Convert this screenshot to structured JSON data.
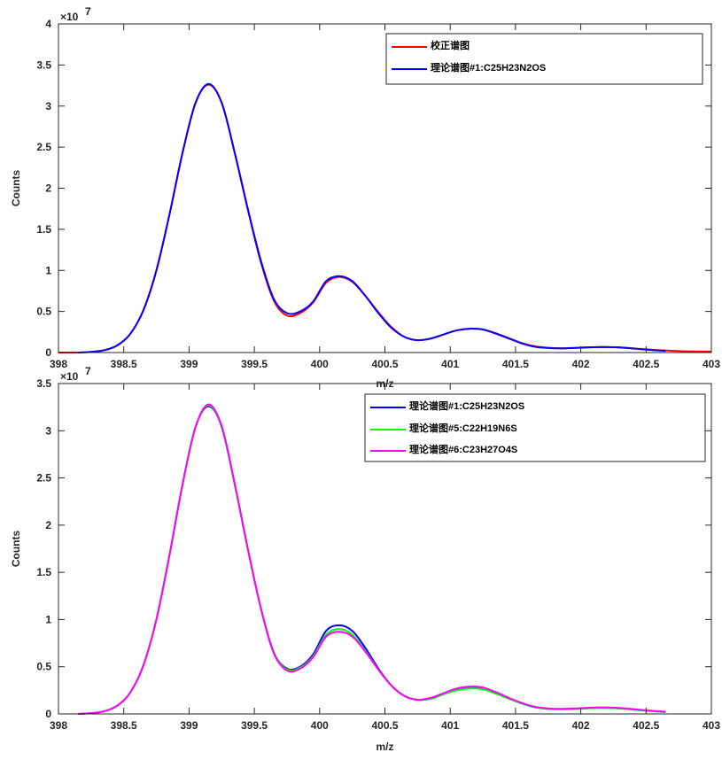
{
  "chart_data": [
    {
      "type": "line",
      "xlabel": "m/z",
      "ylabel": "Counts",
      "y_exponent": "×10",
      "y_exponent_power": "7",
      "xlim": [
        398,
        403
      ],
      "ylim": [
        0,
        4
      ],
      "xticks": [
        398,
        398.5,
        399,
        399.5,
        400,
        400.5,
        401,
        401.5,
        402,
        402.5,
        403
      ],
      "yticks": [
        0,
        0.5,
        1,
        1.5,
        2,
        2.5,
        3,
        3.5,
        4
      ],
      "y_units": "×10^7 counts",
      "grid": false,
      "legend_position": "top-right",
      "series": [
        {
          "name": "校正谱图",
          "color": "#ff0000",
          "x": [
            398.0,
            398.05,
            398.15,
            398.25,
            398.35,
            398.45,
            398.55,
            398.65,
            398.75,
            398.85,
            398.95,
            399.05,
            399.15,
            399.25,
            399.35,
            399.45,
            399.55,
            399.65,
            399.75,
            399.85,
            399.95,
            400.05,
            400.15,
            400.25,
            400.35,
            400.45,
            400.55,
            400.65,
            400.75,
            400.85,
            400.95,
            401.05,
            401.15,
            401.25,
            401.35,
            401.45,
            401.55,
            401.65,
            401.75,
            401.85,
            401.95,
            402.05,
            402.15,
            402.25,
            402.35,
            402.45,
            402.55,
            402.65,
            402.75,
            402.85,
            402.95,
            403.0
          ],
          "y": [
            0,
            0,
            0,
            0.008,
            0.028,
            0.087,
            0.227,
            0.513,
            1.0,
            1.68,
            2.43,
            3.04,
            3.26,
            3.04,
            2.43,
            1.74,
            1.1,
            0.63,
            0.45,
            0.48,
            0.61,
            0.85,
            0.92,
            0.86,
            0.69,
            0.49,
            0.31,
            0.19,
            0.15,
            0.17,
            0.22,
            0.27,
            0.29,
            0.28,
            0.235,
            0.175,
            0.115,
            0.075,
            0.058,
            0.052,
            0.057,
            0.064,
            0.068,
            0.066,
            0.058,
            0.045,
            0.034,
            0.025,
            0.018,
            0.014,
            0.012,
            0.012
          ]
        },
        {
          "name": "理论谱图#1:C25H23N2OS",
          "color": "#0000ff",
          "x": [
            398.15,
            398.25,
            398.35,
            398.45,
            398.55,
            398.65,
            398.75,
            398.85,
            398.95,
            399.05,
            399.15,
            399.25,
            399.35,
            399.45,
            399.55,
            399.65,
            399.75,
            399.85,
            399.95,
            400.05,
            400.15,
            400.25,
            400.35,
            400.45,
            400.55,
            400.65,
            400.75,
            400.85,
            400.95,
            401.05,
            401.15,
            401.25,
            401.35,
            401.45,
            401.55,
            401.65,
            401.75,
            401.85,
            401.95,
            402.05,
            402.15,
            402.25,
            402.35,
            402.45,
            402.55,
            402.65
          ],
          "y": [
            0,
            0.008,
            0.028,
            0.087,
            0.227,
            0.513,
            1.0,
            1.68,
            2.43,
            3.04,
            3.27,
            3.04,
            2.43,
            1.75,
            1.12,
            0.65,
            0.48,
            0.5,
            0.62,
            0.87,
            0.93,
            0.87,
            0.69,
            0.48,
            0.3,
            0.19,
            0.15,
            0.17,
            0.22,
            0.27,
            0.29,
            0.28,
            0.23,
            0.17,
            0.11,
            0.07,
            0.055,
            0.05,
            0.055,
            0.062,
            0.066,
            0.064,
            0.055,
            0.042,
            0.03,
            0.02
          ]
        }
      ]
    },
    {
      "type": "line",
      "xlabel": "m/z",
      "ylabel": "Counts",
      "y_exponent": "×10",
      "y_exponent_power": "7",
      "xlim": [
        398,
        403
      ],
      "ylim": [
        0,
        3.5
      ],
      "xticks": [
        398,
        398.5,
        399,
        399.5,
        400,
        400.5,
        401,
        401.5,
        402,
        402.5,
        403
      ],
      "yticks": [
        0,
        0.5,
        1,
        1.5,
        2,
        2.5,
        3,
        3.5
      ],
      "y_units": "×10^7 counts",
      "grid": false,
      "legend_position": "top-right",
      "series": [
        {
          "name": "理论谱图#1:C25H23N2OS",
          "color": "#0000ff",
          "x": [
            398.15,
            398.25,
            398.35,
            398.45,
            398.55,
            398.65,
            398.75,
            398.85,
            398.95,
            399.05,
            399.15,
            399.25,
            399.35,
            399.45,
            399.55,
            399.65,
            399.75,
            399.85,
            399.95,
            400.05,
            400.15,
            400.25,
            400.35,
            400.45,
            400.55,
            400.65,
            400.75,
            400.85,
            400.95,
            401.05,
            401.15,
            401.25,
            401.35,
            401.45,
            401.55,
            401.65,
            401.75,
            401.85,
            401.95,
            402.05,
            402.15,
            402.25,
            402.35,
            402.45,
            402.55,
            402.65
          ],
          "y": [
            0,
            0.008,
            0.028,
            0.087,
            0.227,
            0.513,
            1.0,
            1.68,
            2.43,
            3.04,
            3.26,
            3.04,
            2.43,
            1.75,
            1.12,
            0.65,
            0.48,
            0.5,
            0.63,
            0.88,
            0.94,
            0.88,
            0.7,
            0.48,
            0.3,
            0.19,
            0.15,
            0.16,
            0.21,
            0.26,
            0.28,
            0.27,
            0.22,
            0.165,
            0.11,
            0.07,
            0.054,
            0.05,
            0.054,
            0.06,
            0.064,
            0.062,
            0.053,
            0.04,
            0.03,
            0.02
          ]
        },
        {
          "name": "理论谱图#5:C22H19N6S",
          "color": "#00ff00",
          "x": [
            398.15,
            398.25,
            398.35,
            398.45,
            398.55,
            398.65,
            398.75,
            398.85,
            398.95,
            399.05,
            399.15,
            399.25,
            399.35,
            399.45,
            399.55,
            399.65,
            399.75,
            399.85,
            399.95,
            400.05,
            400.15,
            400.25,
            400.35,
            400.45,
            400.55,
            400.65,
            400.75,
            400.85,
            400.95,
            401.05,
            401.15,
            401.25,
            401.35,
            401.45,
            401.55,
            401.65,
            401.75,
            401.85,
            401.95,
            402.05,
            402.15,
            402.25,
            402.35,
            402.45,
            402.55,
            402.65
          ],
          "y": [
            0,
            0.008,
            0.028,
            0.087,
            0.227,
            0.513,
            1.0,
            1.68,
            2.43,
            3.04,
            3.27,
            3.04,
            2.43,
            1.75,
            1.12,
            0.65,
            0.47,
            0.49,
            0.61,
            0.84,
            0.9,
            0.84,
            0.67,
            0.47,
            0.3,
            0.19,
            0.15,
            0.16,
            0.21,
            0.25,
            0.27,
            0.26,
            0.215,
            0.16,
            0.11,
            0.07,
            0.054,
            0.05,
            0.054,
            0.06,
            0.063,
            0.061,
            0.052,
            0.04,
            0.03,
            0.02
          ]
        },
        {
          "name": "理论谱图#6:C23H27O4S",
          "color": "#ff00ff",
          "x": [
            398.15,
            398.25,
            398.35,
            398.45,
            398.55,
            398.65,
            398.75,
            398.85,
            398.95,
            399.05,
            399.15,
            399.25,
            399.35,
            399.45,
            399.55,
            399.65,
            399.75,
            399.85,
            399.95,
            400.05,
            400.15,
            400.25,
            400.35,
            400.45,
            400.55,
            400.65,
            400.75,
            400.85,
            400.95,
            401.05,
            401.15,
            401.25,
            401.35,
            401.45,
            401.55,
            401.65,
            401.75,
            401.85,
            401.95,
            402.05,
            402.15,
            402.25,
            402.35,
            402.45,
            402.55,
            402.65
          ],
          "y": [
            0,
            0.008,
            0.028,
            0.087,
            0.227,
            0.513,
            1.0,
            1.68,
            2.43,
            3.04,
            3.28,
            3.05,
            2.44,
            1.75,
            1.12,
            0.64,
            0.46,
            0.48,
            0.6,
            0.82,
            0.87,
            0.82,
            0.66,
            0.47,
            0.3,
            0.19,
            0.15,
            0.17,
            0.22,
            0.27,
            0.29,
            0.28,
            0.23,
            0.17,
            0.115,
            0.075,
            0.058,
            0.054,
            0.058,
            0.065,
            0.069,
            0.067,
            0.058,
            0.045,
            0.033,
            0.023
          ]
        }
      ]
    }
  ]
}
